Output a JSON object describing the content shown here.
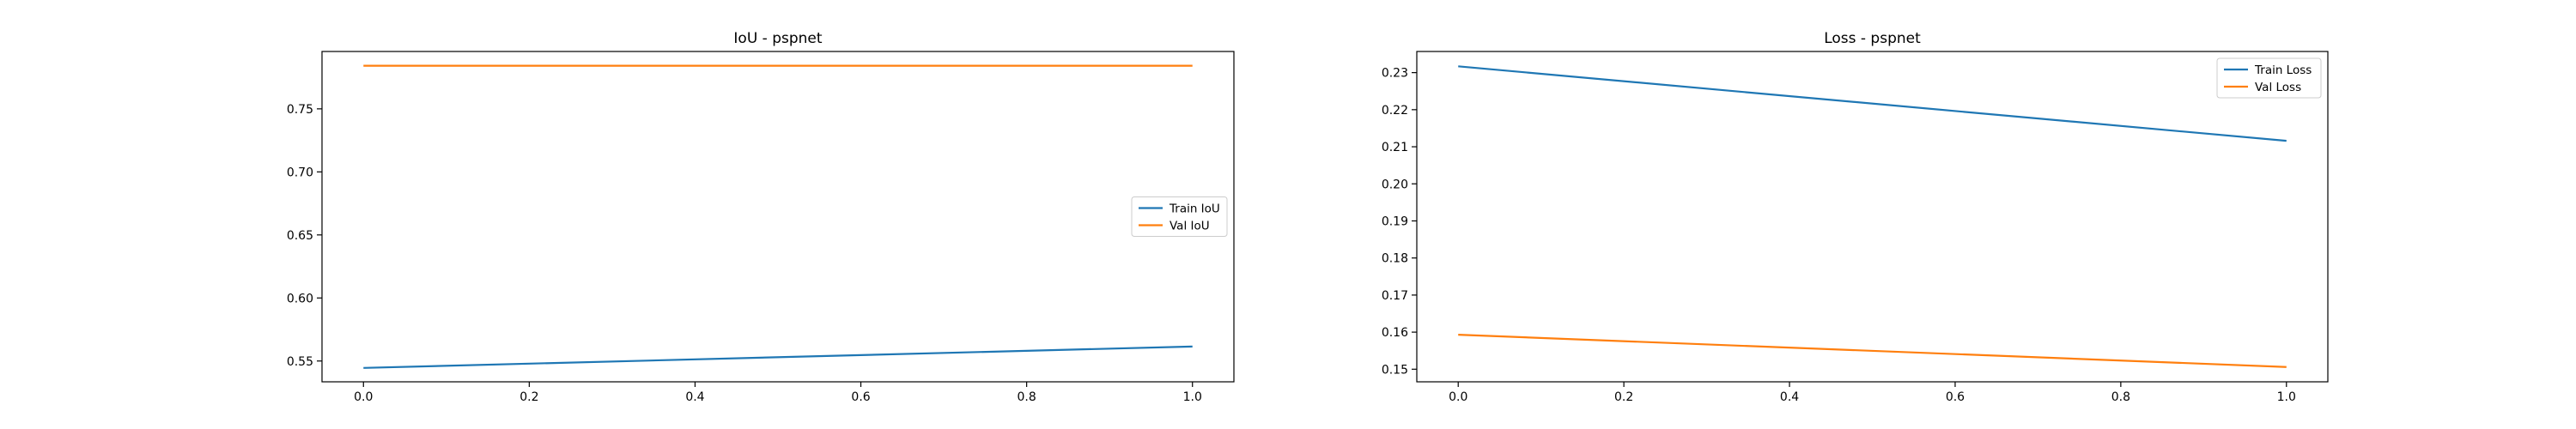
{
  "chart_data": [
    {
      "type": "line",
      "title": "IoU - pspnet",
      "xlabel": "",
      "ylabel": "",
      "x": [
        0.0,
        1.0
      ],
      "xlim": [
        -0.05,
        1.05
      ],
      "ylim": [
        0.5335,
        0.7955
      ],
      "xticks": [
        "0.0",
        "0.2",
        "0.4",
        "0.6",
        "0.8",
        "1.0"
      ],
      "yticks": [
        "0.55",
        "0.60",
        "0.65",
        "0.70",
        "0.75"
      ],
      "grid": false,
      "legend_position": "center right",
      "series": [
        {
          "name": "Train IoU",
          "color": "#1f77b4",
          "values": [
            0.5445,
            0.5615
          ]
        },
        {
          "name": "Val IoU",
          "color": "#ff7f0e",
          "values": [
            0.7842,
            0.7842
          ]
        }
      ]
    },
    {
      "type": "line",
      "title": "Loss - pspnet",
      "xlabel": "",
      "ylabel": "",
      "x": [
        0.0,
        1.0
      ],
      "xlim": [
        -0.05,
        1.05
      ],
      "ylim": [
        0.1466,
        0.2357
      ],
      "xticks": [
        "0.0",
        "0.2",
        "0.4",
        "0.6",
        "0.8",
        "1.0"
      ],
      "yticks": [
        "0.15",
        "0.16",
        "0.17",
        "0.18",
        "0.19",
        "0.20",
        "0.21",
        "0.22",
        "0.23"
      ],
      "grid": false,
      "legend_position": "upper right",
      "series": [
        {
          "name": "Train Loss",
          "color": "#1f77b4",
          "values": [
            0.2317,
            0.2116
          ]
        },
        {
          "name": "Val Loss",
          "color": "#ff7f0e",
          "values": [
            0.1593,
            0.1506
          ]
        }
      ]
    }
  ]
}
